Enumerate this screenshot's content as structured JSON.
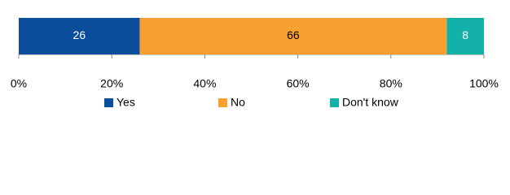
{
  "chart_data": {
    "type": "stacked-bar",
    "orientation": "horizontal",
    "series": [
      {
        "name": "Yes",
        "color": "#0b4f9c",
        "values": [
          26
        ]
      },
      {
        "name": "No",
        "color": "#f7a030",
        "values": [
          66
        ]
      },
      {
        "name": "Don't know",
        "color": "#14b1a8",
        "values": [
          8
        ]
      }
    ],
    "xlim": [
      0,
      100
    ],
    "xticks": [
      {
        "value": 0,
        "label": "0%"
      },
      {
        "value": 20,
        "label": "20%"
      },
      {
        "value": 40,
        "label": "40%"
      },
      {
        "value": 60,
        "label": "60%"
      },
      {
        "value": 80,
        "label": "80%"
      },
      {
        "value": 100,
        "label": "100%"
      }
    ],
    "legend": "bottom"
  }
}
